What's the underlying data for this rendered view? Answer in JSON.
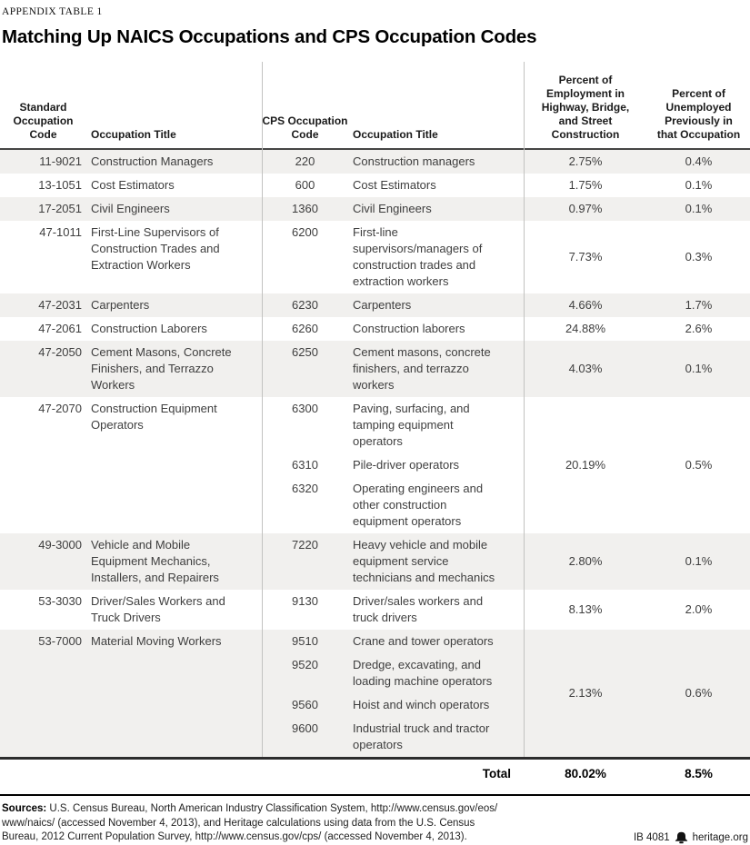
{
  "header": {
    "kicker": "APPENDIX TABLE 1",
    "title": "Matching Up NAICS Occupations and CPS Occupation Codes"
  },
  "table": {
    "columns": [
      {
        "id": "soc_code",
        "label": "Standard Occupation Code"
      },
      {
        "id": "soc_title",
        "label": "Occupation Title"
      },
      {
        "id": "cps_code",
        "label": "CPS Occupation Code"
      },
      {
        "id": "cps_title",
        "label": "Occupation Title"
      },
      {
        "id": "pct_employment",
        "label": "Percent of Employment in Highway, Bridge, and Street Construction"
      },
      {
        "id": "pct_unemployed",
        "label": "Percent of Unemployed Previously in that Occupation"
      }
    ],
    "rows": [
      {
        "shaded": true,
        "soc_code": "11-9021",
        "soc_title": "Construction Managers",
        "cps": [
          {
            "code": "220",
            "title": "Construction managers"
          }
        ],
        "pct_employment": "2.75%",
        "pct_unemployed": "0.4%"
      },
      {
        "shaded": false,
        "soc_code": "13-1051",
        "soc_title": "Cost Estimators",
        "cps": [
          {
            "code": "600",
            "title": "Cost Estimators"
          }
        ],
        "pct_employment": "1.75%",
        "pct_unemployed": "0.1%"
      },
      {
        "shaded": true,
        "soc_code": "17-2051",
        "soc_title": "Civil Engineers",
        "cps": [
          {
            "code": "1360",
            "title": "Civil Engineers"
          }
        ],
        "pct_employment": "0.97%",
        "pct_unemployed": "0.1%"
      },
      {
        "shaded": false,
        "soc_code": "47-1011",
        "soc_title": "First-Line Supervisors of Construction Trades and Extraction Workers",
        "cps": [
          {
            "code": "6200",
            "title": "First-line supervisors/managers of construction trades and extraction workers"
          }
        ],
        "pct_employment": "7.73%",
        "pct_unemployed": "0.3%"
      },
      {
        "shaded": true,
        "soc_code": "47-2031",
        "soc_title": "Carpenters",
        "cps": [
          {
            "code": "6230",
            "title": "Carpenters"
          }
        ],
        "pct_employment": "4.66%",
        "pct_unemployed": "1.7%"
      },
      {
        "shaded": false,
        "soc_code": "47-2061",
        "soc_title": "Construction Laborers",
        "cps": [
          {
            "code": "6260",
            "title": "Construction laborers"
          }
        ],
        "pct_employment": "24.88%",
        "pct_unemployed": "2.6%"
      },
      {
        "shaded": true,
        "soc_code": "47-2050",
        "soc_title": "Cement Masons, Concrete Finishers, and Terrazzo Workers",
        "cps": [
          {
            "code": "6250",
            "title": "Cement masons, concrete finishers, and terrazzo workers"
          }
        ],
        "pct_employment": "4.03%",
        "pct_unemployed": "0.1%"
      },
      {
        "shaded": false,
        "soc_code": "47-2070",
        "soc_title": "Construction Equipment Operators",
        "cps": [
          {
            "code": "6300",
            "title": "Paving, surfacing, and tamping equipment operators"
          },
          {
            "code": "6310",
            "title": "Pile-driver operators"
          },
          {
            "code": "6320",
            "title": "Operating engineers and other construction equipment operators"
          }
        ],
        "pct_employment": "20.19%",
        "pct_unemployed": "0.5%"
      },
      {
        "shaded": true,
        "soc_code": "49-3000",
        "soc_title": "Vehicle and Mobile Equipment Mechanics, Installers, and Repairers",
        "cps": [
          {
            "code": "7220",
            "title": "Heavy vehicle and mobile equipment service technicians and mechanics"
          }
        ],
        "pct_employment": "2.80%",
        "pct_unemployed": "0.1%"
      },
      {
        "shaded": false,
        "soc_code": "53-3030",
        "soc_title": "Driver/Sales Workers and Truck Drivers",
        "cps": [
          {
            "code": "9130",
            "title": "Driver/sales workers and truck drivers"
          }
        ],
        "pct_employment": "8.13%",
        "pct_unemployed": "2.0%"
      },
      {
        "shaded": true,
        "soc_code": "53-7000",
        "soc_title": "Material Moving Workers",
        "cps": [
          {
            "code": "9510",
            "title": "Crane and tower operators"
          },
          {
            "code": "9520",
            "title": "Dredge, excavating, and loading machine operators"
          },
          {
            "code": "9560",
            "title": "Hoist and winch operators"
          },
          {
            "code": "9600",
            "title": "Industrial truck and tractor operators"
          }
        ],
        "pct_employment": "2.13%",
        "pct_unemployed": "0.6%"
      }
    ],
    "total": {
      "label": "Total",
      "pct_employment": "80.02%",
      "pct_unemployed": "8.5%"
    }
  },
  "footer": {
    "sources_label": "Sources:",
    "sources_lines": [
      "U.S. Census Bureau, North American Industry Classification System, http://www.census.gov/eos/",
      "www/naics/ (accessed November 4, 2013), and Heritage calculations using data from the U.S. Census",
      "Bureau, 2012 Current Population Survey, http://www.census.gov/cps/ (accessed November 4, 2013)."
    ],
    "doc_id": "IB 4081",
    "site": "heritage.org",
    "logo_icon": "liberty-bell-icon"
  },
  "colors": {
    "row_shade": "#f1f0ee",
    "column_divider": "#c2c2c0",
    "header_rule": "#454545",
    "bottom_rule": "#2d2d2d",
    "footer_rule": "#000000"
  }
}
